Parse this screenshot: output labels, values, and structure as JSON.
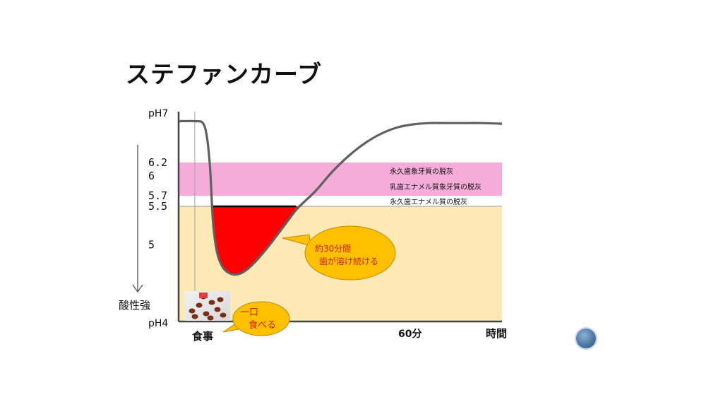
{
  "title": "ステファンカーブ",
  "chart_data": {
    "type": "line",
    "title": "ステファンカーブ",
    "ylabel_top": "pH7",
    "ylabel_bottom": "pH4",
    "y_arrow_label": "酸性強",
    "xlabel": "時間",
    "x_tick_label": "60分",
    "meal_label": "食事",
    "y_ticks": [
      {
        "value": 6.2,
        "label": "6.2"
      },
      {
        "value": 6.0,
        "label": "6"
      },
      {
        "value": 5.7,
        "label": "5.7"
      },
      {
        "value": 5.5,
        "label": "5.5"
      },
      {
        "value": 5.0,
        "label": "5"
      }
    ],
    "ylim": [
      4,
      7
    ],
    "xlim": [
      0,
      80
    ],
    "bands": [
      {
        "from": 5.7,
        "to": 6.2,
        "color": "#f5acd9",
        "label": "永久歯象牙質の脱灰"
      },
      {
        "from": 5.7,
        "to": 6.2,
        "color": "#f5acd9",
        "label": "乳歯エナメル質象牙質の脱灰"
      },
      {
        "from": 4.0,
        "to": 5.5,
        "color": "#fde9b5",
        "label": "永久歯エナメル質の脱灰"
      }
    ],
    "series": [
      {
        "x": [
          0,
          4,
          6,
          7,
          7.8,
          8.5,
          9.5,
          11,
          13,
          15,
          17,
          19,
          21,
          23,
          25,
          27,
          29,
          31,
          34,
          38,
          42,
          46,
          50,
          54,
          58,
          62,
          66,
          70,
          75,
          80
        ],
        "values": [
          6.85,
          6.85,
          6.82,
          6.6,
          6.1,
          5.3,
          4.9,
          4.7,
          4.62,
          4.62,
          4.68,
          4.78,
          4.9,
          5.03,
          5.17,
          5.31,
          5.45,
          5.58,
          5.78,
          6.06,
          6.3,
          6.5,
          6.65,
          6.75,
          6.8,
          6.82,
          6.82,
          6.82,
          6.82,
          6.81
        ],
        "color": "#606060"
      }
    ],
    "critical_ph": 5.5,
    "meal_x": 4,
    "sixty_min_x": 62,
    "callouts": [
      {
        "lines": [
          "約30分間",
          "歯が溶け続ける"
        ],
        "fill": "#ffc000",
        "text_color": "#d02000"
      },
      {
        "lines": [
          "一口",
          "食べる"
        ],
        "fill": "#ffc000",
        "text_color": "#d02000"
      }
    ]
  }
}
